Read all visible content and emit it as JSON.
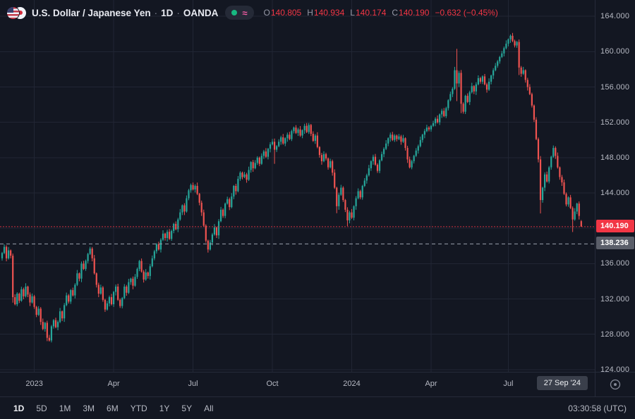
{
  "header": {
    "symbol_title": "U.S. Dollar / Japanese Yen",
    "separator": "·",
    "interval": "1D",
    "exchange": "OANDA",
    "ohlc": {
      "o_label": "O",
      "o": "140.805",
      "h_label": "H",
      "h": "140.934",
      "l_label": "L",
      "l": "140.174",
      "c_label": "C",
      "c": "140.190",
      "change": "−0.632 (−0.45%)"
    }
  },
  "price_axis": {
    "ticks": [
      "164.000",
      "160.000",
      "156.000",
      "152.000",
      "148.000",
      "144.000",
      "140.000",
      "136.000",
      "132.000",
      "128.000",
      "124.000"
    ],
    "last_price_label": "140.190",
    "level_label": "138.236"
  },
  "time_axis": {
    "date_label": "27 Sep '24"
  },
  "toolbar": {
    "ranges": [
      "1D",
      "5D",
      "1M",
      "3M",
      "6M",
      "YTD",
      "1Y",
      "5Y",
      "All"
    ],
    "active": "1D",
    "clock": "03:30:58 (UTC)"
  },
  "colors": {
    "bg": "#131722",
    "grid": "#212634",
    "up": "#26a69a",
    "down": "#ef5350",
    "price_label_red": "#f23645",
    "level_label_gray": "#5a5e69",
    "dashed_level_line": "#9aa1ad",
    "text": "#d1d4dc",
    "muted": "#b6b9c3"
  },
  "chart_data": {
    "type": "candlestick",
    "title": "U.S. Dollar / Japanese Yen, 1D, OANDA",
    "pair": "USD/JPY",
    "interval": "1D",
    "exchange": "OANDA",
    "last_bar": {
      "date": "27 Sep '24",
      "open": 140.805,
      "high": 140.934,
      "low": 140.174,
      "close": 140.19,
      "change": -0.632,
      "change_pct": -0.45
    },
    "ylim": [
      123.75,
      165.85
    ],
    "y_ticks": [
      164,
      160,
      156,
      152,
      148,
      144,
      140,
      136,
      132,
      128,
      124
    ],
    "price_line": 140.19,
    "dashed_level": 138.236,
    "x_ticks": [
      {
        "label": "2023",
        "i": 15
      },
      {
        "label": "Apr",
        "i": 52
      },
      {
        "label": "Jul",
        "i": 89
      },
      {
        "label": "Oct",
        "i": 126
      },
      {
        "label": "2024",
        "i": 163
      },
      {
        "label": "Apr",
        "i": 200
      },
      {
        "label": "Jul",
        "i": 236
      }
    ],
    "closes": [
      137.2,
      137.9,
      136.6,
      137.5,
      136.9,
      132.2,
      131.4,
      132.6,
      131.8,
      133.1,
      132.3,
      133.4,
      132.5,
      131.6,
      132.3,
      131.1,
      130.2,
      130.9,
      129.4,
      128.6,
      129.3,
      127.6,
      127.3,
      128.9,
      129.6,
      128.8,
      129.4,
      130.6,
      129.8,
      131.3,
      132.4,
      131.7,
      133.0,
      132.4,
      133.6,
      134.9,
      134.3,
      136.0,
      135.4,
      136.3,
      137.1,
      137.7,
      136.6,
      134.9,
      133.6,
      132.6,
      133.3,
      131.9,
      130.8,
      131.5,
      132.2,
      131.4,
      132.8,
      133.4,
      131.9,
      131.2,
      132.1,
      133.4,
      132.7,
      133.9,
      134.3,
      133.5,
      134.5,
      135.4,
      136.3,
      135.1,
      134.2,
      135.0,
      134.6,
      135.7,
      136.6,
      137.4,
      138.2,
      137.6,
      138.7,
      139.4,
      138.9,
      139.6,
      138.8,
      139.7,
      140.5,
      139.9,
      141.0,
      141.8,
      142.6,
      141.9,
      143.4,
      144.3,
      144.9,
      144.4,
      144.8,
      143.9,
      142.9,
      141.8,
      140.3,
      138.6,
      137.6,
      138.4,
      139.3,
      140.1,
      139.2,
      140.8,
      142.1,
      141.4,
      142.8,
      143.3,
      142.4,
      143.6,
      144.8,
      144.2,
      145.6,
      146.3,
      145.8,
      146.1,
      145.5,
      146.6,
      147.5,
      146.8,
      147.4,
      148.0,
      147.3,
      148.2,
      148.7,
      148.1,
      149.0,
      149.5,
      149.8,
      148.9,
      149.3,
      149.8,
      150.3,
      149.6,
      150.2,
      150.6,
      150.1,
      151.0,
      151.4,
      150.8,
      151.2,
      150.5,
      151.1,
      151.6,
      150.9,
      151.7,
      150.7,
      149.9,
      150.5,
      149.2,
      148.3,
      147.6,
      148.4,
      147.9,
      146.9,
      147.6,
      146.3,
      144.6,
      142.5,
      143.8,
      144.6,
      143.2,
      142.1,
      140.9,
      141.8,
      141.2,
      142.5,
      143.4,
      144.2,
      143.5,
      144.8,
      145.4,
      146.0,
      146.8,
      147.6,
      148.1,
      147.2,
      146.5,
      147.7,
      148.4,
      149.0,
      149.6,
      150.2,
      150.6,
      150.0,
      150.5,
      150.1,
      150.4,
      149.8,
      150.2,
      149.1,
      147.8,
      146.9,
      147.6,
      148.2,
      148.8,
      149.3,
      150.0,
      150.6,
      151.0,
      151.4,
      151.2,
      151.6,
      151.9,
      152.4,
      152.0,
      152.9,
      153.3,
      152.7,
      153.6,
      154.5,
      155.2,
      155.8,
      157.9,
      156.4,
      157.6,
      154.1,
      153.2,
      155.0,
      154.3,
      155.4,
      156.1,
      155.5,
      156.3,
      157.0,
      156.6,
      157.2,
      156.3,
      155.7,
      156.6,
      157.3,
      157.9,
      158.4,
      158.9,
      159.4,
      159.8,
      160.4,
      160.9,
      161.4,
      161.8,
      161.2,
      160.7,
      161.1,
      158.2,
      157.5,
      157.9,
      156.8,
      156.0,
      155.2,
      153.9,
      152.3,
      150.1,
      147.8,
      143.2,
      144.6,
      146.1,
      145.3,
      146.9,
      148.1,
      149.1,
      148.2,
      146.9,
      145.8,
      145.2,
      143.9,
      142.7,
      143.5,
      142.3,
      141.0,
      141.9,
      142.8,
      141.4,
      140.19
    ],
    "overrides": {
      "0": {
        "o": 136.6
      },
      "5": {
        "l": 131.58
      },
      "21": {
        "l": 127.22
      },
      "41": {
        "h": 137.91
      },
      "88": {
        "h": 145.07
      },
      "96": {
        "l": 137.25
      },
      "127": {
        "h": 150.16,
        "l": 147.3
      },
      "143": {
        "h": 151.92
      },
      "156": {
        "l": 141.71
      },
      "161": {
        "l": 140.25
      },
      "212": {
        "h": 160.32,
        "l": 154.4
      },
      "214": {
        "l": 153.04
      },
      "237": {
        "h": 161.95
      },
      "241": {
        "l": 157.35
      },
      "251": {
        "l": 141.68
      },
      "266": {
        "l": 139.58
      },
      "270": {
        "o": 140.805,
        "h": 140.934,
        "l": 140.174,
        "c": 140.19
      }
    },
    "wick_up": [
      0.12,
      0.28,
      0.18,
      0.38,
      0.1,
      0.24,
      0.32,
      0.16
    ],
    "wick_dn": [
      0.26,
      0.12,
      0.34,
      0.14,
      0.3,
      0.4,
      0.12,
      0.22
    ]
  }
}
